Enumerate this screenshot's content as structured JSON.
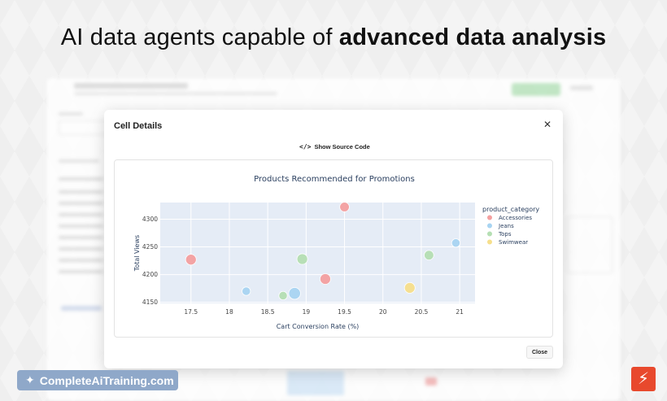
{
  "headline": {
    "regular": "AI data agents capable of ",
    "bold": "advanced data analysis"
  },
  "modal": {
    "title": "Cell Details",
    "source_button": "Show Source Code",
    "close_button": "Close"
  },
  "watermark": {
    "text": "CompleteAiTraining.com"
  },
  "colors": {
    "Accessories": "#f4a0a0",
    "Jeans": "#a8d4f2",
    "Tops": "#b5dfb3",
    "Swimwear": "#f6df8c",
    "plot_bg": "#e5ecf6",
    "brand": "#8fa8c9",
    "logo": "#e8492d"
  },
  "chart_data": {
    "type": "scatter",
    "title": "Products Recommended for Promotions",
    "xlabel": "Cart Conversion Rate (%)",
    "ylabel": "Total Views",
    "xlim": [
      17.1,
      21.2
    ],
    "ylim": [
      4148,
      4330
    ],
    "xticks": [
      "17.5",
      "18",
      "18.5",
      "19",
      "19.5",
      "20",
      "20.5",
      "21"
    ],
    "yticks": [
      "4150",
      "4200",
      "4250",
      "4300"
    ],
    "xtick_values": [
      17.5,
      18,
      18.5,
      19,
      19.5,
      20,
      20.5,
      21
    ],
    "ytick_values": [
      4150,
      4200,
      4250,
      4300
    ],
    "legend_title": "product_category",
    "legend_position": "right",
    "grid": true,
    "series": [
      {
        "name": "Accessories",
        "points": [
          {
            "x": 17.5,
            "y": 4227,
            "size": 3
          },
          {
            "x": 19.25,
            "y": 4192,
            "size": 3
          },
          {
            "x": 19.5,
            "y": 4322,
            "size": 2.5
          }
        ]
      },
      {
        "name": "Jeans",
        "points": [
          {
            "x": 18.22,
            "y": 4170,
            "size": 2
          },
          {
            "x": 18.85,
            "y": 4166,
            "size": 3.5
          },
          {
            "x": 20.95,
            "y": 4257,
            "size": 2
          }
        ]
      },
      {
        "name": "Tops",
        "points": [
          {
            "x": 18.7,
            "y": 4162,
            "size": 2
          },
          {
            "x": 18.95,
            "y": 4228,
            "size": 3
          },
          {
            "x": 20.6,
            "y": 4235,
            "size": 2.5
          }
        ]
      },
      {
        "name": "Swimwear",
        "points": [
          {
            "x": 20.35,
            "y": 4176,
            "size": 3
          }
        ]
      }
    ]
  }
}
